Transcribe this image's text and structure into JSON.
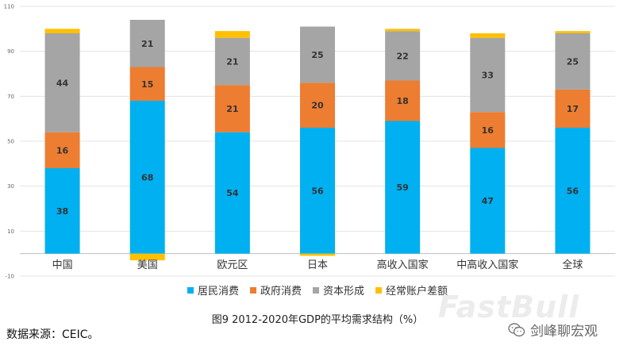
{
  "chart_data": {
    "type": "bar",
    "stacked": true,
    "categories": [
      "中国",
      "美国",
      "欧元区",
      "日本",
      "高收入国家",
      "中高收入国家",
      "全球"
    ],
    "series": [
      {
        "name": "居民消费",
        "color": "#00B0F0",
        "values": [
          38,
          68,
          54,
          56,
          59,
          47,
          56
        ]
      },
      {
        "name": "政府消费",
        "color": "#ED7D31",
        "values": [
          16,
          15,
          21,
          20,
          18,
          16,
          17
        ]
      },
      {
        "name": "资本形成",
        "color": "#A5A5A5",
        "values": [
          44,
          21,
          21,
          25,
          22,
          33,
          25
        ]
      },
      {
        "name": "经常账户差额",
        "color": "#FFC000",
        "values": [
          2,
          -3,
          3,
          -1,
          1,
          2,
          1
        ]
      }
    ],
    "yticks": [
      -10,
      10,
      30,
      50,
      70,
      90,
      110
    ],
    "ylim": [
      -10,
      110
    ],
    "grid": true,
    "legend_position": "bottom",
    "title": "图9 2012-2020年GDP的平均需求结构（%）"
  },
  "source": "数据来源：CEIC。",
  "watermark": "FastBull",
  "wechat_account": "剑峰聊宏观"
}
